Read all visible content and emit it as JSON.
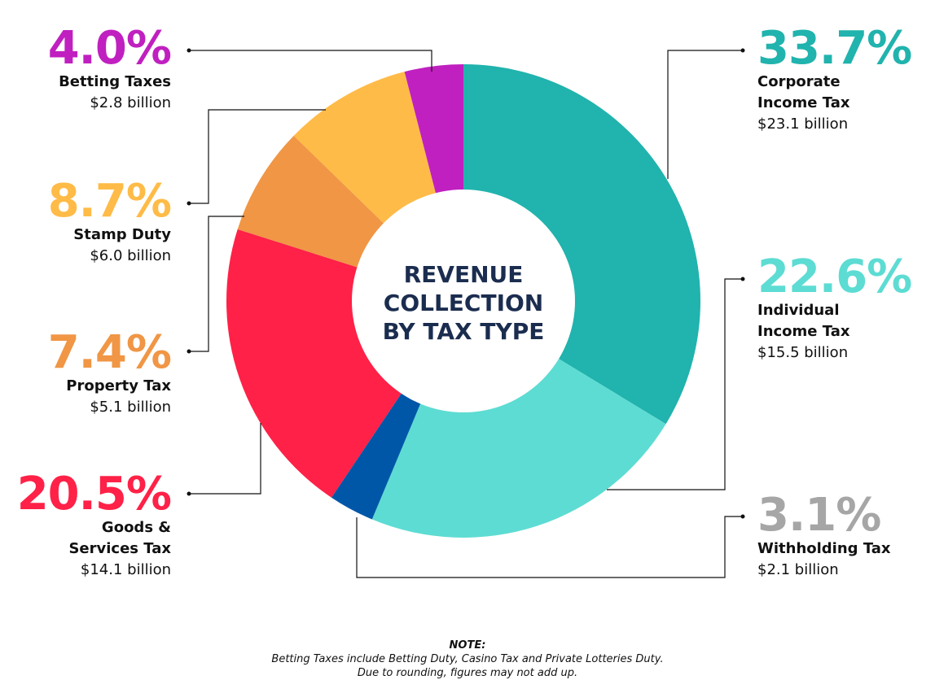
{
  "chart_data": {
    "type": "pie",
    "variant": "donut",
    "title": "REVENUE\nCOLLECTION\nBY TAX TYPE",
    "slices": [
      {
        "name": "Corporate\nIncome Tax",
        "percent": "33.7%",
        "value": 33.7,
        "amount": "$23.1 billion",
        "color": "#21B3AD",
        "label_color": "#21B3AD",
        "side": "right"
      },
      {
        "name": "Individual\nIncome Tax",
        "percent": "22.6%",
        "value": 22.6,
        "amount": "$15.5 billion",
        "color": "#5DDCD3",
        "label_color": "#5DDCD3",
        "side": "right"
      },
      {
        "name": "Withholding Tax",
        "percent": "3.1%",
        "value": 3.1,
        "amount": "$2.1 billion",
        "color": "#0057A8",
        "label_color": "#A6A6A6",
        "side": "right"
      },
      {
        "name": "Goods &\nServices Tax",
        "percent": "20.5%",
        "value": 20.5,
        "amount": "$14.1 billion",
        "color": "#FF2147",
        "label_color": "#FF2147",
        "side": "left"
      },
      {
        "name": "Property Tax",
        "percent": "7.4%",
        "value": 7.4,
        "amount": "$5.1 billion",
        "color": "#F09645",
        "label_color": "#F09645",
        "side": "left"
      },
      {
        "name": "Stamp Duty",
        "percent": "8.7%",
        "value": 8.7,
        "amount": "$6.0 billion",
        "color": "#FFBB47",
        "label_color": "#FFBB47",
        "side": "left"
      },
      {
        "name": "Betting Taxes",
        "percent": "4.0%",
        "value": 4.0,
        "amount": "$2.8 billion",
        "color": "#C020C0",
        "label_color": "#C020C0",
        "side": "left"
      }
    ]
  },
  "note": {
    "heading": "NOTE:",
    "line1": "Betting Taxes include Betting Duty, Casino Tax and Private Lotteries Duty.",
    "line2": "Due to rounding, figures may not add up."
  }
}
